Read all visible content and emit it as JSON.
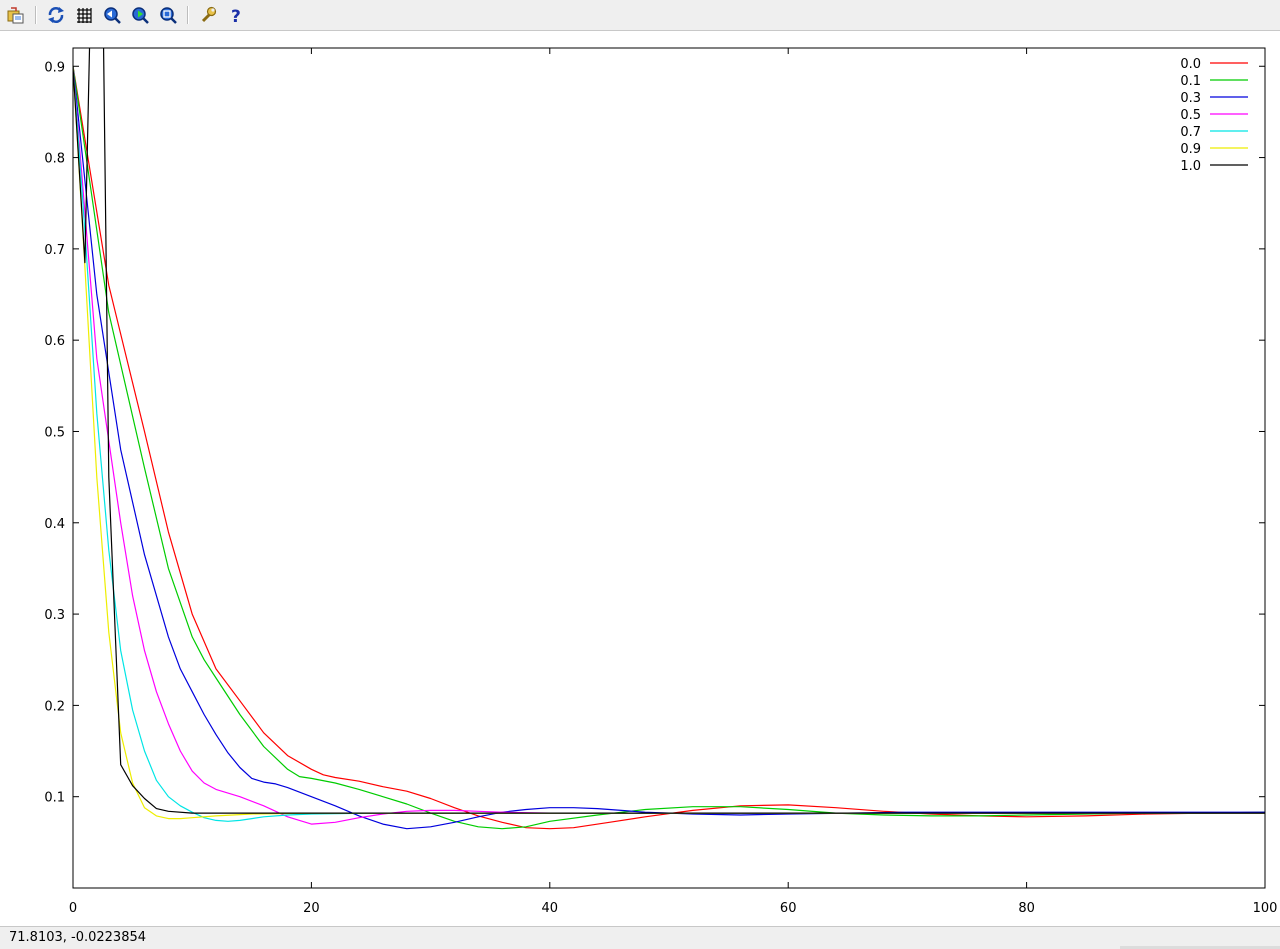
{
  "toolbar": {
    "buttons": [
      {
        "name": "export-button",
        "icon": "export-icon"
      },
      {
        "name": "replot-button",
        "icon": "replot-icon"
      },
      {
        "name": "grid-button",
        "icon": "grid-icon"
      },
      {
        "name": "previous-zoom-button",
        "icon": "zoom-back-icon"
      },
      {
        "name": "next-zoom-button",
        "icon": "zoom-forward-icon"
      },
      {
        "name": "autoscale-button",
        "icon": "zoom-fit-icon"
      },
      {
        "name": "config-button",
        "icon": "wrench-icon"
      },
      {
        "name": "help-button",
        "icon": "help-icon"
      }
    ]
  },
  "status": {
    "coordinates": "71.8103, -0.0223854"
  },
  "chart_data": {
    "type": "line",
    "title": "",
    "xlabel": "",
    "ylabel": "",
    "xlim": [
      0,
      100
    ],
    "ylim": [
      0.0,
      0.92
    ],
    "x_ticks": [
      0,
      20,
      40,
      60,
      80,
      100
    ],
    "x_tick_labels": [
      "0",
      "20",
      "40",
      "60",
      "80",
      "100"
    ],
    "y_ticks": [
      0.1,
      0.2,
      0.3,
      0.4,
      0.5,
      0.6,
      0.7,
      0.8,
      0.9
    ],
    "y_tick_labels": [
      "0.1",
      "0.2",
      "0.3",
      "0.4",
      "0.5",
      "0.6",
      "0.7",
      "0.8",
      "0.9"
    ],
    "grid": false,
    "legend_position": "top-right",
    "series": [
      {
        "name": "0.0",
        "color": "#ff0000",
        "x": [
          0,
          3,
          6,
          8,
          10,
          12,
          14,
          16,
          18,
          20,
          21,
          22,
          24,
          26,
          28,
          30,
          32,
          34,
          36,
          38,
          40,
          42,
          45,
          48,
          52,
          56,
          60,
          64,
          68,
          72,
          76,
          80,
          85,
          90,
          95,
          100
        ],
        "y": [
          0.9,
          0.66,
          0.5,
          0.39,
          0.3,
          0.24,
          0.205,
          0.17,
          0.145,
          0.13,
          0.124,
          0.121,
          0.117,
          0.111,
          0.106,
          0.098,
          0.088,
          0.079,
          0.072,
          0.066,
          0.065,
          0.066,
          0.072,
          0.078,
          0.085,
          0.09,
          0.091,
          0.088,
          0.084,
          0.081,
          0.079,
          0.078,
          0.079,
          0.081,
          0.082,
          0.083
        ]
      },
      {
        "name": "0.1",
        "color": "#00cc00",
        "x": [
          0,
          3,
          6,
          8,
          10,
          11,
          12,
          14,
          16,
          18,
          19,
          20,
          22,
          24,
          26,
          28,
          30,
          32,
          34,
          36,
          38,
          40,
          44,
          48,
          52,
          56,
          60,
          64,
          68,
          72,
          76,
          80,
          85,
          90,
          95,
          100
        ],
        "y": [
          0.9,
          0.63,
          0.46,
          0.35,
          0.275,
          0.25,
          0.23,
          0.19,
          0.155,
          0.13,
          0.122,
          0.12,
          0.115,
          0.108,
          0.1,
          0.092,
          0.082,
          0.073,
          0.067,
          0.065,
          0.067,
          0.073,
          0.08,
          0.086,
          0.089,
          0.089,
          0.086,
          0.082,
          0.08,
          0.079,
          0.079,
          0.08,
          0.081,
          0.082,
          0.082,
          0.083
        ]
      },
      {
        "name": "0.3",
        "color": "#0000dd",
        "x": [
          0,
          2,
          4,
          6,
          8,
          9,
          10,
          11,
          12,
          13,
          14,
          15,
          16,
          17,
          18,
          20,
          22,
          24,
          26,
          28,
          30,
          32,
          34,
          36,
          38,
          40,
          42,
          44,
          46,
          48,
          52,
          56,
          60,
          65,
          70,
          80,
          90,
          100
        ],
        "y": [
          0.9,
          0.65,
          0.48,
          0.365,
          0.275,
          0.24,
          0.215,
          0.19,
          0.168,
          0.148,
          0.132,
          0.12,
          0.116,
          0.114,
          0.11,
          0.1,
          0.09,
          0.079,
          0.07,
          0.065,
          0.067,
          0.072,
          0.078,
          0.083,
          0.086,
          0.088,
          0.088,
          0.087,
          0.085,
          0.083,
          0.081,
          0.08,
          0.081,
          0.082,
          0.083,
          0.083,
          0.083,
          0.083
        ]
      },
      {
        "name": "0.5",
        "color": "#ff00ff",
        "x": [
          0,
          2,
          4,
          5,
          6,
          7,
          8,
          9,
          10,
          11,
          12,
          14,
          16,
          18,
          20,
          22,
          24,
          26,
          28,
          30,
          32,
          34,
          36,
          40,
          50,
          60,
          80,
          100
        ],
        "y": [
          0.9,
          0.58,
          0.4,
          0.32,
          0.26,
          0.215,
          0.18,
          0.15,
          0.128,
          0.115,
          0.108,
          0.1,
          0.09,
          0.078,
          0.07,
          0.072,
          0.077,
          0.081,
          0.084,
          0.085,
          0.085,
          0.084,
          0.083,
          0.082,
          0.082,
          0.082,
          0.082,
          0.082
        ]
      },
      {
        "name": "0.7",
        "color": "#00e5e5",
        "x": [
          0,
          1,
          2,
          3,
          4,
          5,
          6,
          7,
          8,
          9,
          10,
          11,
          12,
          13,
          14,
          15,
          16,
          18,
          20,
          25,
          30,
          40,
          60,
          80,
          100
        ],
        "y": [
          0.9,
          0.72,
          0.52,
          0.37,
          0.26,
          0.195,
          0.15,
          0.118,
          0.1,
          0.09,
          0.083,
          0.077,
          0.074,
          0.073,
          0.074,
          0.076,
          0.078,
          0.08,
          0.081,
          0.082,
          0.082,
          0.082,
          0.082,
          0.082,
          0.082
        ]
      },
      {
        "name": "0.9",
        "color": "#eeee00",
        "x": [
          0,
          1,
          2,
          3,
          4,
          5,
          6,
          7,
          8,
          9,
          10,
          12,
          15,
          20,
          40,
          60,
          80,
          100
        ],
        "y": [
          0.9,
          0.68,
          0.45,
          0.28,
          0.17,
          0.115,
          0.088,
          0.079,
          0.076,
          0.076,
          0.077,
          0.079,
          0.081,
          0.082,
          0.082,
          0.082,
          0.082,
          0.082
        ]
      },
      {
        "name": "1.0",
        "color": "#000000",
        "x": [
          0,
          1,
          1.5,
          2.5,
          3,
          4,
          5,
          6,
          7,
          8,
          10,
          20,
          40,
          60,
          80,
          100
        ],
        "y": [
          0.9,
          0.685,
          0.99,
          0.99,
          0.45,
          0.135,
          0.112,
          0.098,
          0.087,
          0.084,
          0.082,
          0.082,
          0.082,
          0.082,
          0.082,
          0.082
        ]
      }
    ]
  }
}
